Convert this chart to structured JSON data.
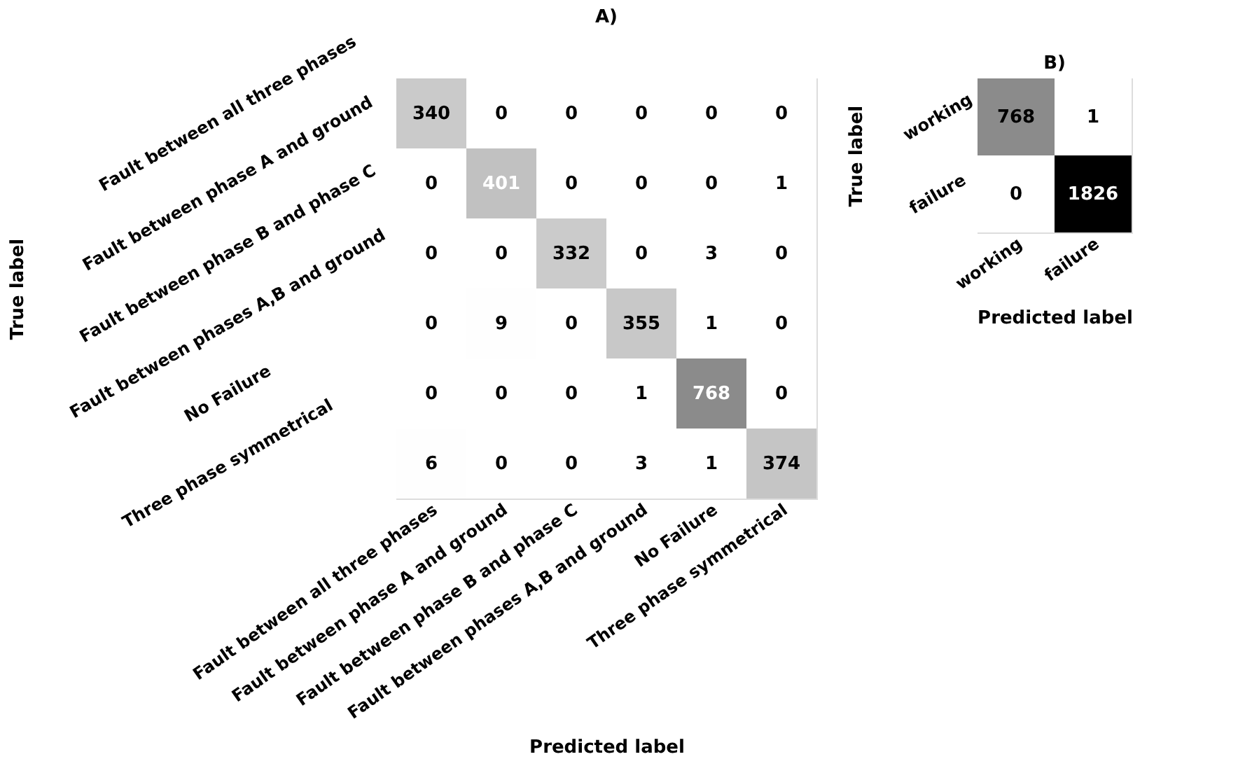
{
  "chart_data": [
    {
      "type": "heatmap",
      "title": "A)",
      "xlabel": "Predicted label",
      "ylabel": "True label",
      "data_labels": true,
      "categories": [
        "Fault between all three phases",
        "Fault between phase A and ground",
        "Fault between phase B and phase C",
        "Fault between phases A,B and ground",
        "No Failure",
        "Three  phase symmetrical"
      ],
      "y_categories": [
        "Fault between all three phases",
        "Fault between phase A and ground",
        "Fault between phase B and phase C",
        "Fault between phases A,B and ground",
        "No Failure",
        "Three  phase symmetrical"
      ],
      "cells": [
        [
          340,
          0,
          0,
          0,
          0,
          0
        ],
        [
          0,
          401,
          0,
          0,
          0,
          1
        ],
        [
          0,
          0,
          332,
          0,
          3,
          0
        ],
        [
          0,
          9,
          0,
          355,
          1,
          0
        ],
        [
          0,
          0,
          0,
          1,
          768,
          0
        ],
        [
          6,
          0,
          0,
          3,
          1,
          374
        ]
      ]
    },
    {
      "type": "heatmap",
      "title": "B)",
      "xlabel": "Predicted label",
      "ylabel": "True label",
      "data_labels": true,
      "categories": [
        "working",
        "failure"
      ],
      "y_categories": [
        "working",
        "failure"
      ],
      "cells": [
        [
          768,
          1
        ],
        [
          0,
          1826
        ]
      ]
    }
  ]
}
